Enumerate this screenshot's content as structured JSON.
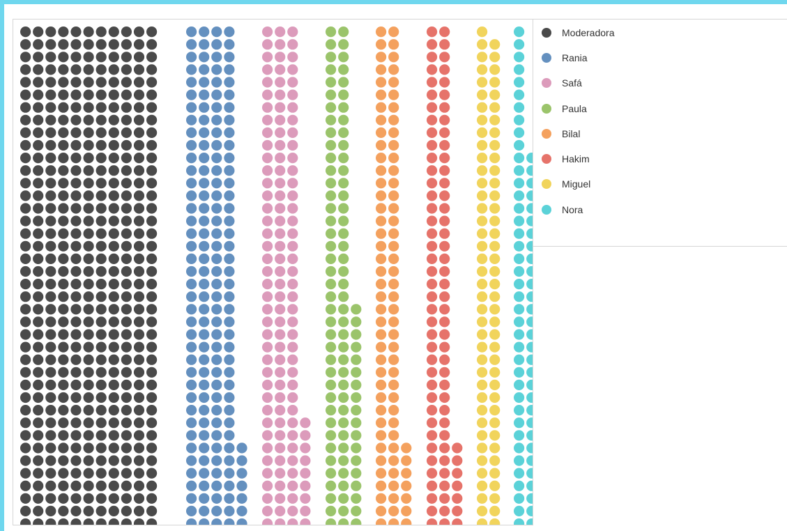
{
  "chart_data": {
    "type": "waffle",
    "title": "",
    "legend_position": "right",
    "series": [
      {
        "name": "Moderadora",
        "color": "#4a4a4a",
        "count": 440,
        "max_columns": 12
      },
      {
        "name": "Rania",
        "color": "#6490bf",
        "count": 167,
        "max_columns": 5
      },
      {
        "name": "Safá",
        "color": "#dc9bbb",
        "count": 129,
        "max_columns": 4
      },
      {
        "name": "Paula",
        "color": "#9bc46b",
        "count": 98,
        "max_columns": 3
      },
      {
        "name": "Bilal",
        "color": "#f4a15e",
        "count": 87,
        "max_columns": 3
      },
      {
        "name": "Hakim",
        "color": "#e6736a",
        "count": 87,
        "max_columns": 3
      },
      {
        "name": "Miguel",
        "color": "#f1d45c",
        "count": 79,
        "max_columns": 2
      },
      {
        "name": "Nora",
        "color": "#5bd2d8",
        "count": 70,
        "max_columns": 2
      }
    ]
  }
}
